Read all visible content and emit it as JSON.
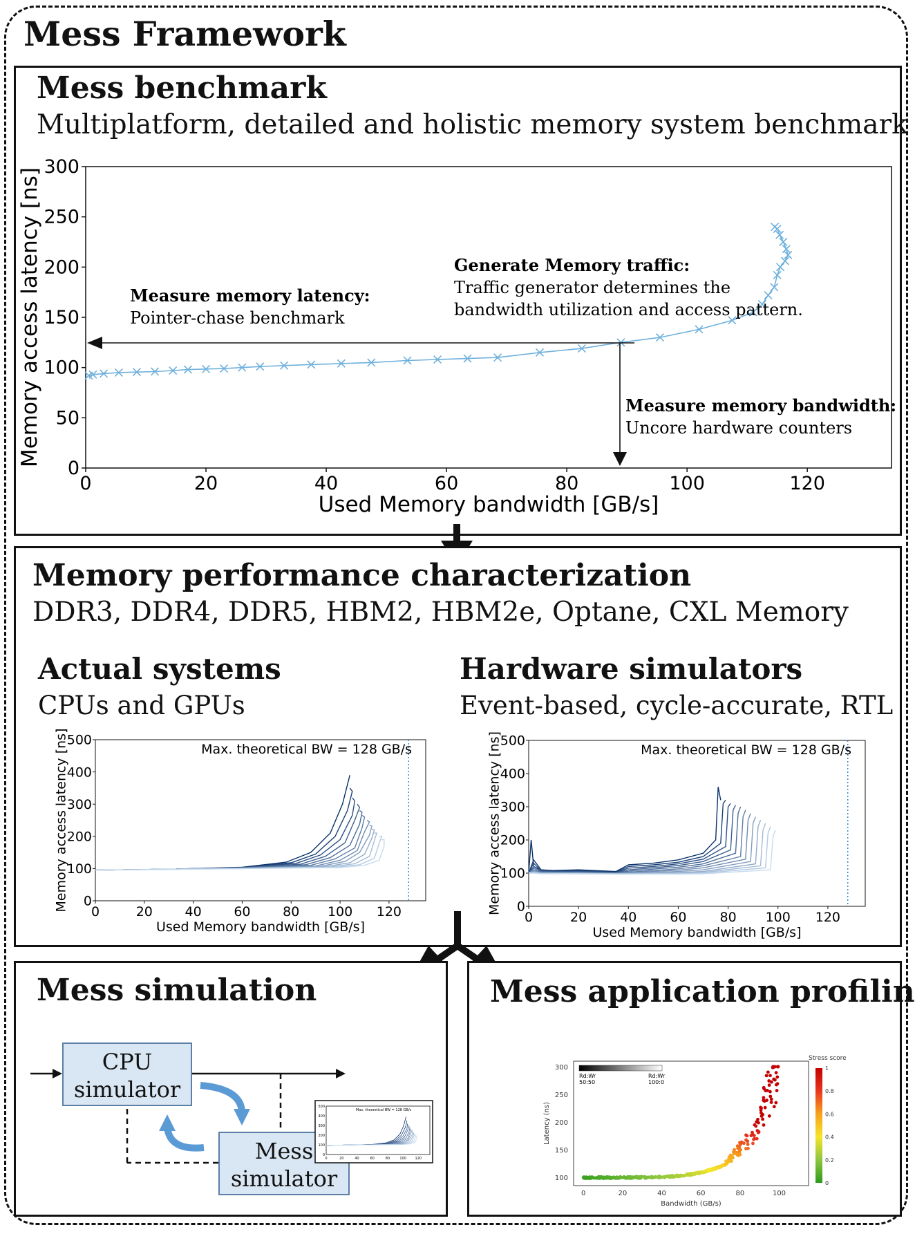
{
  "framework_title": "Mess Framework",
  "benchmark": {
    "title": "Mess benchmark",
    "subtitle": "Multiplatform, detailed and holistic memory system benchmark",
    "annotations": {
      "latency_title": "Measure memory latency:",
      "latency_text": "Pointer-chase benchmark",
      "traffic_title": "Generate Memory traffic:",
      "traffic_text_1": "Traffic generator determines the",
      "traffic_text_2": "bandwidth utilization and access pattern.",
      "bandwidth_title": "Measure memory bandwidth:",
      "bandwidth_text": "Uncore hardware counters"
    }
  },
  "characterization": {
    "title": "Memory performance characterization",
    "subtitle": "DDR3, DDR4, DDR5, HBM2, HBM2e, Optane, CXL Memory",
    "actual": {
      "title": "Actual systems",
      "subtitle": "CPUs and GPUs"
    },
    "simulators": {
      "title": "Hardware simulators",
      "subtitle": "Event-based, cycle-accurate, RTL"
    }
  },
  "simulation": {
    "title": "Mess simulation",
    "cpu_label_1": "CPU",
    "cpu_label_2": "simulator",
    "mess_label_1": "Mess",
    "mess_label_2": "simulator",
    "thumb_annotation": "Max. theoretical BW = 128 GB/s",
    "thumb_yticks": [
      "0",
      "100",
      "200",
      "300",
      "400",
      "500"
    ],
    "thumb_xticks": [
      "0",
      "20",
      "40",
      "60",
      "80",
      "100",
      "120"
    ]
  },
  "profiling": {
    "title": "Mess application profiling"
  },
  "colors": {
    "series_light": "#6fb0dc",
    "blue_dark": "#08306b",
    "blue_light": "#c6dbef",
    "sim_box": "#d9e6f3",
    "arrow_blue": "#5b9bd5"
  },
  "chart_data": [
    {
      "type": "line",
      "xlabel": "Used Memory bandwidth [GB/s]",
      "ylabel": "Memory access latency [ns]",
      "xlim": [
        0,
        134
      ],
      "ylim": [
        0,
        300
      ],
      "xticks": [
        0,
        20,
        40,
        60,
        80,
        100,
        120
      ],
      "yticks": [
        0,
        50,
        100,
        150,
        200,
        250,
        300
      ],
      "grid": false,
      "series": [
        {
          "x": [
            0.5,
            1.2,
            3,
            5.5,
            8.5,
            11.5,
            14.5,
            17,
            20,
            23,
            26,
            29,
            33,
            37.5,
            42.5,
            47.5,
            53.5,
            58.5,
            63.5,
            68.5,
            75.5,
            82.5,
            89,
            95.5,
            102,
            107.5,
            111,
            112.5,
            113.5,
            114.5,
            115,
            115.5,
            116.3,
            116.8,
            116.5,
            116,
            115.4,
            115,
            114.6
          ],
          "y": [
            92,
            93,
            94,
            95,
            95.5,
            96,
            97,
            98,
            98.5,
            99,
            100,
            101,
            102,
            103,
            104,
            105,
            107,
            108,
            109,
            110,
            115,
            119,
            125,
            130,
            138,
            147,
            155,
            163,
            172,
            180,
            192,
            200,
            206,
            212,
            218,
            225,
            232,
            238,
            240
          ]
        }
      ],
      "annotations": [
        "Measure memory latency:",
        "Pointer-chase benchmark",
        "Generate Memory traffic:",
        "Traffic generator determines the",
        "bandwidth utilization and access pattern.",
        "Measure memory bandwidth:",
        "Uncore hardware counters"
      ]
    },
    {
      "type": "line",
      "xlabel": "Used Memory bandwidth [GB/s]",
      "ylabel": "Memory access latency [ns]",
      "xlim": [
        0,
        135
      ],
      "ylim": [
        0,
        500
      ],
      "xticks": [
        0,
        20,
        40,
        60,
        80,
        100,
        120
      ],
      "yticks": [
        0,
        100,
        200,
        300,
        400,
        500
      ],
      "annotation": "Max. theoretical BW = 128 GB/s",
      "max_bw_line": 128,
      "series_count": 12,
      "series": [
        {
          "x": [
            0,
            30,
            60,
            78,
            88,
            96,
            101,
            103,
            104
          ],
          "y": [
            95,
            98,
            104,
            120,
            150,
            210,
            300,
            360,
            390
          ]
        },
        {
          "x": [
            0,
            30,
            60,
            80,
            90,
            98,
            103,
            105,
            104
          ],
          "y": [
            95,
            98,
            103,
            118,
            145,
            200,
            280,
            340,
            350
          ]
        },
        {
          "x": [
            0,
            30,
            60,
            82,
            92,
            100,
            105,
            106,
            105
          ],
          "y": [
            95,
            98,
            103,
            116,
            142,
            190,
            265,
            310,
            320
          ]
        },
        {
          "x": [
            0,
            30,
            60,
            84,
            94,
            102,
            106,
            108,
            107
          ],
          "y": [
            95,
            98,
            102,
            114,
            138,
            180,
            250,
            290,
            300
          ]
        },
        {
          "x": [
            0,
            30,
            60,
            86,
            96,
            104,
            108,
            109,
            108
          ],
          "y": [
            95,
            98,
            102,
            112,
            134,
            172,
            238,
            275,
            280
          ]
        },
        {
          "x": [
            0,
            30,
            60,
            88,
            98,
            106,
            109,
            110,
            109
          ],
          "y": [
            95,
            98,
            102,
            110,
            130,
            164,
            226,
            260,
            265
          ]
        },
        {
          "x": [
            0,
            30,
            60,
            90,
            100,
            107,
            110,
            112,
            111
          ],
          "y": [
            95,
            98,
            101,
            108,
            126,
            156,
            214,
            245,
            250
          ]
        },
        {
          "x": [
            0,
            30,
            60,
            92,
            102,
            108,
            112,
            113,
            112
          ],
          "y": [
            95,
            98,
            101,
            107,
            122,
            150,
            204,
            232,
            235
          ]
        },
        {
          "x": [
            0,
            30,
            60,
            94,
            104,
            110,
            113,
            114,
            113
          ],
          "y": [
            95,
            98,
            101,
            106,
            118,
            144,
            194,
            220,
            222
          ]
        },
        {
          "x": [
            0,
            30,
            60,
            96,
            106,
            112,
            114,
            115,
            114
          ],
          "y": [
            95,
            98,
            100,
            105,
            115,
            138,
            186,
            210,
            210
          ]
        },
        {
          "x": [
            0,
            30,
            60,
            98,
            108,
            114,
            116,
            117,
            116
          ],
          "y": [
            95,
            98,
            100,
            104,
            112,
            132,
            178,
            200,
            200
          ]
        },
        {
          "x": [
            0,
            30,
            60,
            100,
            110,
            116,
            118,
            118,
            117
          ],
          "y": [
            95,
            97,
            100,
            103,
            110,
            126,
            170,
            190,
            190
          ]
        }
      ]
    },
    {
      "type": "line",
      "xlabel": "Used Memory bandwidth [GB/s]",
      "ylabel": "Memory access latency [ns]",
      "xlim": [
        0,
        135
      ],
      "ylim": [
        0,
        500
      ],
      "xticks": [
        0,
        20,
        40,
        60,
        80,
        100,
        120
      ],
      "yticks": [
        0,
        100,
        200,
        300,
        400,
        500
      ],
      "annotation": "Max. theoretical BW = 128 GB/s",
      "max_bw_line": 128,
      "series_count": 12,
      "series": [
        {
          "x": [
            0,
            1,
            2,
            5,
            10,
            20,
            35,
            40,
            50,
            60,
            70,
            75,
            76,
            77
          ],
          "y": [
            100,
            200,
            120,
            110,
            108,
            110,
            105,
            125,
            130,
            140,
            160,
            200,
            360,
            320
          ]
        },
        {
          "x": [
            0,
            2,
            5,
            10,
            20,
            35,
            40,
            50,
            60,
            70,
            77,
            78,
            79
          ],
          "y": [
            100,
            140,
            110,
            106,
            108,
            103,
            120,
            125,
            133,
            150,
            190,
            310,
            320
          ]
        },
        {
          "x": [
            0,
            2,
            5,
            10,
            20,
            35,
            40,
            50,
            60,
            70,
            79,
            80,
            81
          ],
          "y": [
            100,
            130,
            108,
            105,
            106,
            102,
            115,
            120,
            128,
            142,
            180,
            300,
            310
          ]
        },
        {
          "x": [
            0,
            2,
            5,
            10,
            20,
            35,
            40,
            50,
            60,
            70,
            81,
            82,
            83
          ],
          "y": [
            100,
            120,
            106,
            104,
            104,
            101,
            110,
            116,
            123,
            135,
            170,
            290,
            305
          ]
        },
        {
          "x": [
            0,
            2,
            5,
            10,
            20,
            35,
            40,
            50,
            60,
            70,
            83,
            84,
            85
          ],
          "y": [
            100,
            115,
            104,
            103,
            103,
            100,
            106,
            112,
            118,
            128,
            160,
            280,
            300
          ]
        },
        {
          "x": [
            0,
            2,
            5,
            10,
            20,
            35,
            40,
            50,
            60,
            70,
            85,
            86,
            87
          ],
          "y": [
            100,
            110,
            102,
            102,
            102,
            100,
            103,
            108,
            113,
            122,
            150,
            270,
            290
          ]
        },
        {
          "x": [
            0,
            2,
            5,
            10,
            20,
            35,
            40,
            50,
            60,
            70,
            87,
            88,
            89
          ],
          "y": [
            100,
            108,
            101,
            101,
            101,
            99,
            101,
            105,
            109,
            116,
            142,
            260,
            280
          ]
        },
        {
          "x": [
            0,
            2,
            5,
            10,
            20,
            35,
            40,
            50,
            60,
            70,
            89,
            90,
            91
          ],
          "y": [
            100,
            106,
            100,
            100,
            100,
            99,
            100,
            102,
            105,
            110,
            135,
            250,
            270
          ]
        },
        {
          "x": [
            0,
            2,
            5,
            10,
            20,
            35,
            40,
            50,
            60,
            70,
            91,
            92,
            93
          ],
          "y": [
            100,
            104,
            100,
            100,
            100,
            98,
            99,
            100,
            102,
            105,
            128,
            240,
            260
          ]
        },
        {
          "x": [
            0,
            2,
            5,
            10,
            20,
            35,
            40,
            50,
            60,
            70,
            93,
            94,
            95
          ],
          "y": [
            100,
            102,
            99,
            99,
            99,
            98,
            98,
            99,
            100,
            102,
            122,
            230,
            250
          ]
        },
        {
          "x": [
            0,
            2,
            5,
            10,
            20,
            35,
            40,
            50,
            60,
            70,
            95,
            96,
            97
          ],
          "y": [
            100,
            101,
            99,
            99,
            98,
            97,
            97,
            98,
            98,
            100,
            116,
            220,
            240
          ]
        },
        {
          "x": [
            0,
            2,
            5,
            10,
            20,
            35,
            40,
            50,
            60,
            70,
            97,
            98,
            99
          ],
          "y": [
            100,
            100,
            98,
            98,
            98,
            97,
            97,
            97,
            97,
            98,
            110,
            210,
            230
          ]
        }
      ]
    },
    {
      "type": "scatter",
      "xlabel": "Bandwidth (GB/s)",
      "ylabel": "Latency (ns)",
      "xlim": [
        -5,
        115
      ],
      "ylim": [
        85,
        310
      ],
      "xticks": [
        0,
        20,
        40,
        60,
        80,
        100
      ],
      "yticks": [
        100,
        150,
        200,
        250,
        300
      ],
      "legend_gradient": {
        "left": "Rd:Wr\n50:50",
        "right": "Rd:Wr\n100:0"
      },
      "colorbar": {
        "label": "Stress score",
        "ticks": [
          "0",
          "0.2",
          "0.4",
          "0.6",
          "0.8",
          "1"
        ]
      }
    }
  ]
}
